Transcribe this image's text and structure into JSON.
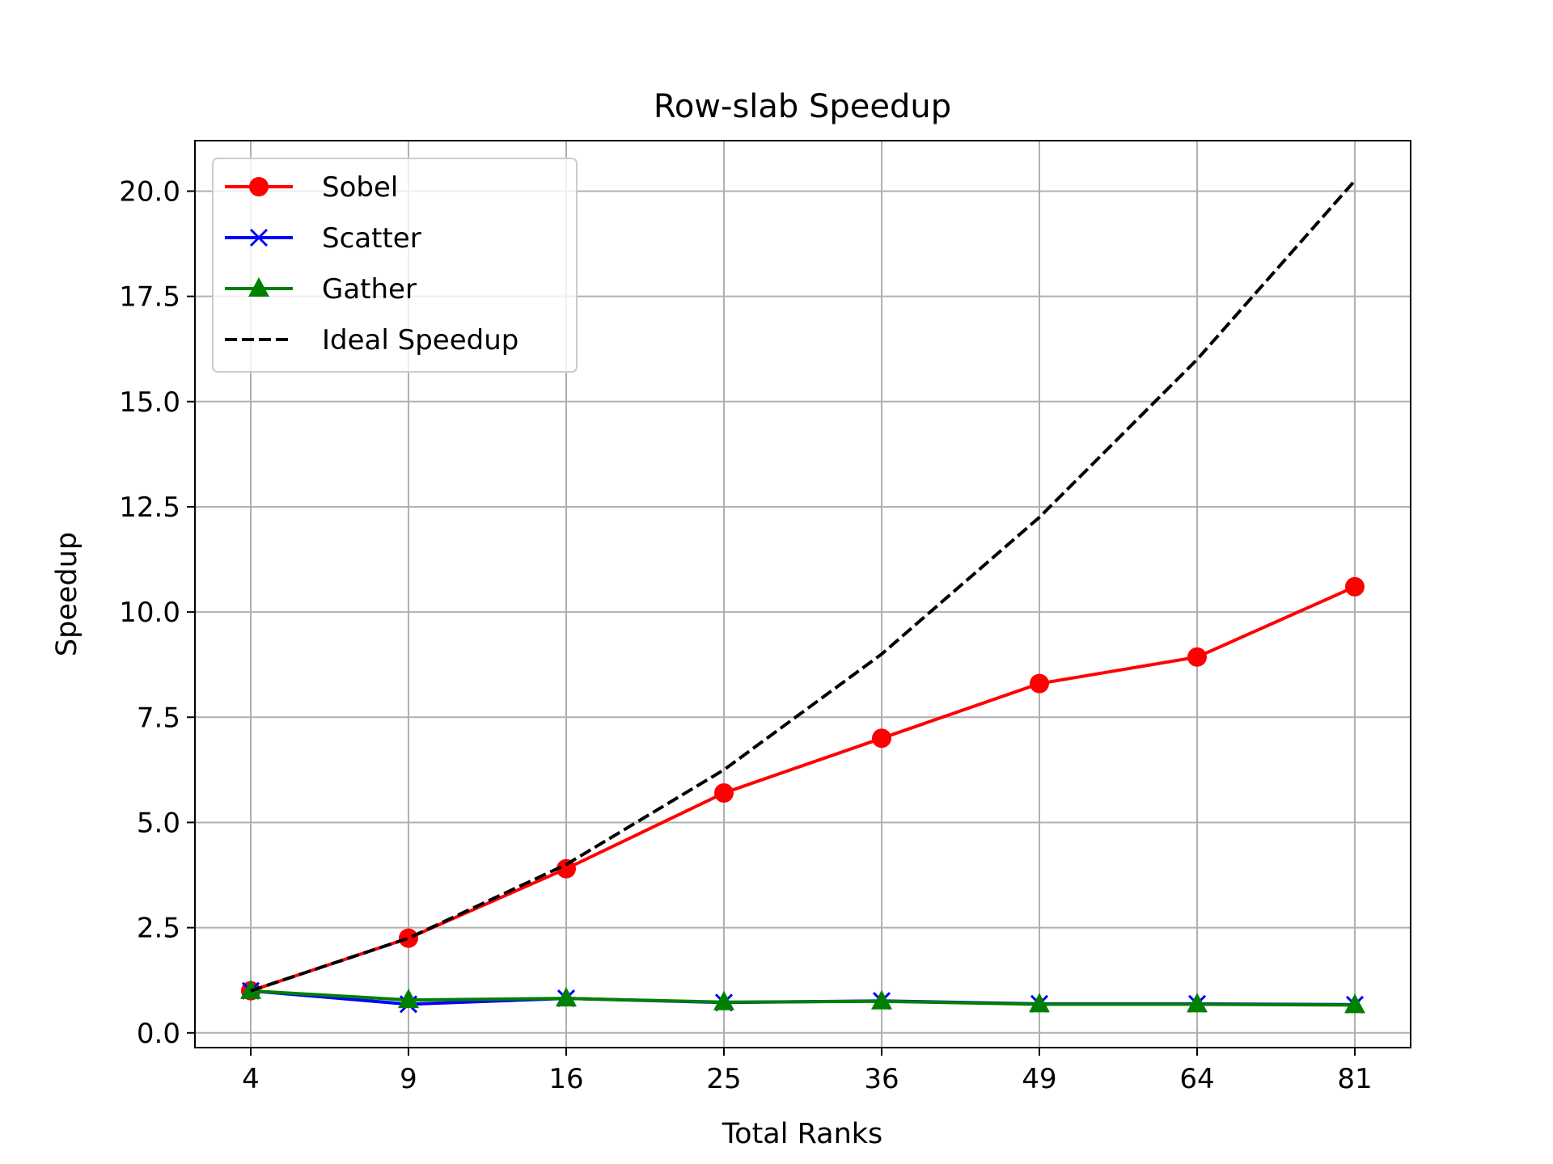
{
  "chart_data": {
    "type": "line",
    "title": "Row-slab Speedup",
    "xlabel": "Total Ranks",
    "ylabel": "Speedup",
    "categories": [
      "4",
      "9",
      "16",
      "25",
      "36",
      "49",
      "64",
      "81"
    ],
    "yticks": [
      "0.0",
      "2.5",
      "5.0",
      "7.5",
      "10.0",
      "12.5",
      "15.0",
      "17.5",
      "20.0"
    ],
    "ylim": [
      -0.35,
      21.2
    ],
    "grid": true,
    "legend_position": "upper-left",
    "series": [
      {
        "name": "Sobel",
        "values": [
          1.0,
          2.25,
          3.9,
          5.7,
          7.0,
          8.3,
          8.93,
          10.6
        ],
        "color": "#ff0000",
        "marker": "circle",
        "line": "solid"
      },
      {
        "name": "Scatter",
        "values": [
          1.0,
          0.68,
          0.82,
          0.72,
          0.76,
          0.69,
          0.69,
          0.67
        ],
        "color": "#0000ff",
        "marker": "x",
        "line": "solid"
      },
      {
        "name": "Gather",
        "values": [
          1.0,
          0.78,
          0.82,
          0.73,
          0.75,
          0.68,
          0.68,
          0.66
        ],
        "color": "#008000",
        "marker": "triangle",
        "line": "solid"
      },
      {
        "name": "Ideal Speedup",
        "values": [
          1.0,
          2.25,
          4.0,
          6.25,
          9.0,
          12.25,
          16.0,
          20.25
        ],
        "color": "#000000",
        "marker": "none",
        "line": "dashed"
      }
    ]
  }
}
